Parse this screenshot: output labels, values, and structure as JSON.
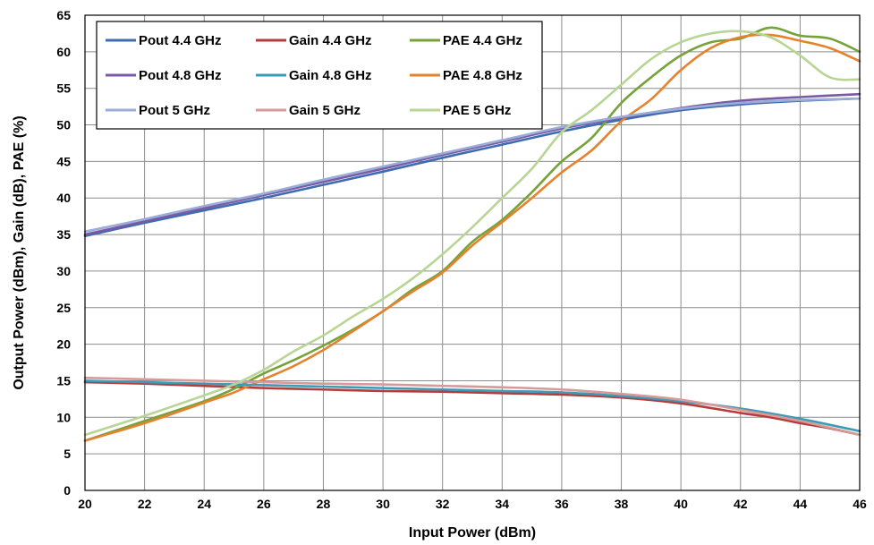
{
  "chart_data": {
    "type": "line",
    "xlabel": "Input Power (dBm)",
    "ylabel": "Output Power (dBm), Gain (dB), PAE (%)",
    "xlim": [
      20,
      46
    ],
    "ylim": [
      0,
      65
    ],
    "xticks": [
      20,
      22,
      24,
      26,
      28,
      30,
      32,
      34,
      36,
      38,
      40,
      42,
      44,
      46
    ],
    "yticks": [
      0,
      5,
      10,
      15,
      20,
      25,
      30,
      35,
      40,
      45,
      50,
      55,
      60,
      65
    ],
    "grid": true,
    "legend_position": "top-left",
    "series": [
      {
        "name": "Pout 4.4 GHz",
        "color": "#3E6BB2",
        "x": [
          20,
          22,
          24,
          26,
          28,
          30,
          32,
          34,
          36,
          38,
          40,
          42,
          44,
          46
        ],
        "y": [
          34.8,
          36.6,
          38.3,
          40.0,
          41.8,
          43.6,
          45.5,
          47.3,
          49.1,
          50.7,
          52.0,
          52.8,
          53.3,
          53.6
        ]
      },
      {
        "name": "Gain 4.4 GHz",
        "color": "#B43C3C",
        "x": [
          20,
          22,
          24,
          26,
          28,
          30,
          32,
          34,
          36,
          38,
          40,
          42,
          43,
          44,
          45,
          46
        ],
        "y": [
          14.8,
          14.6,
          14.3,
          14.0,
          13.8,
          13.6,
          13.5,
          13.3,
          13.1,
          12.7,
          11.9,
          10.6,
          10.0,
          9.2,
          8.5,
          7.6
        ]
      },
      {
        "name": "PAE 4.4 GHz",
        "color": "#76A23A",
        "x": [
          20,
          22,
          24,
          25,
          26,
          27,
          28,
          29,
          30,
          31,
          32,
          33,
          34,
          35,
          36,
          37,
          38,
          39,
          40,
          41,
          42,
          43,
          44,
          45,
          46
        ],
        "y": [
          6.8,
          9.5,
          12.2,
          13.9,
          16.0,
          17.8,
          19.8,
          22.0,
          24.5,
          27.5,
          30.0,
          34.0,
          37.0,
          40.8,
          45.0,
          48.2,
          53.0,
          56.5,
          59.5,
          61.3,
          61.8,
          63.3,
          62.2,
          61.8,
          60.0
        ]
      },
      {
        "name": "PAE 4.8 GHz",
        "color": "#E6822E",
        "x": [
          20,
          22,
          24,
          25,
          26,
          27,
          28,
          29,
          30,
          31,
          32,
          33,
          34,
          35,
          36,
          37,
          38,
          39,
          40,
          41,
          42,
          43,
          44,
          45,
          46
        ],
        "y": [
          6.8,
          9.2,
          12.0,
          13.4,
          15.2,
          17.0,
          19.2,
          21.8,
          24.5,
          27.2,
          29.8,
          33.5,
          36.7,
          40.0,
          43.5,
          46.5,
          50.5,
          53.5,
          57.5,
          60.5,
          62.0,
          62.3,
          61.5,
          60.5,
          58.7
        ]
      },
      {
        "name": "Pout 4.8 GHz",
        "color": "#7A5AA3",
        "x": [
          20,
          22,
          24,
          26,
          28,
          30,
          32,
          34,
          36,
          38,
          40,
          42,
          44,
          46
        ],
        "y": [
          35.0,
          36.8,
          38.6,
          40.4,
          42.2,
          44.0,
          45.9,
          47.7,
          49.5,
          51.0,
          52.3,
          53.3,
          53.8,
          54.2
        ]
      },
      {
        "name": "Gain 4.8 GHz",
        "color": "#3C9BB5",
        "x": [
          20,
          22,
          24,
          26,
          28,
          30,
          32,
          34,
          36,
          38,
          40,
          42,
          44,
          46
        ],
        "y": [
          15.0,
          14.8,
          14.6,
          14.4,
          14.2,
          14.0,
          13.8,
          13.6,
          13.4,
          12.9,
          12.2,
          11.2,
          9.8,
          8.1
        ]
      },
      {
        "name": "Pout 5 GHz",
        "color": "#9AACD8",
        "x": [
          20,
          22,
          24,
          26,
          28,
          30,
          32,
          34,
          36,
          38,
          40,
          42,
          44,
          46
        ],
        "y": [
          35.4,
          37.1,
          38.9,
          40.6,
          42.5,
          44.3,
          46.1,
          47.9,
          49.7,
          51.1,
          52.2,
          53.0,
          53.4,
          53.6
        ]
      },
      {
        "name": "Gain 5 GHz",
        "color": "#D89A98",
        "x": [
          20,
          22,
          24,
          26,
          28,
          30,
          32,
          34,
          36,
          38,
          40,
          42,
          44,
          46
        ],
        "y": [
          15.4,
          15.2,
          15.0,
          14.8,
          14.6,
          14.5,
          14.3,
          14.1,
          13.8,
          13.2,
          12.4,
          11.0,
          9.5,
          7.6
        ]
      },
      {
        "name": "PAE 5 GHz",
        "color": "#B8D595",
        "x": [
          20,
          22,
          24,
          25,
          26,
          27,
          28,
          29,
          30,
          31,
          32,
          33,
          34,
          35,
          36,
          37,
          38,
          39,
          40,
          41,
          42,
          43,
          44,
          45,
          46
        ],
        "y": [
          7.6,
          10.2,
          13.0,
          14.5,
          16.5,
          19.0,
          21.2,
          23.8,
          26.2,
          29.0,
          32.3,
          36.0,
          40.0,
          44.0,
          49.0,
          52.0,
          55.5,
          59.0,
          61.3,
          62.5,
          62.8,
          62.0,
          59.5,
          56.5,
          56.2
        ]
      }
    ],
    "legend_order": [
      [
        "Pout 4.4 GHz",
        "Gain 4.4 GHz",
        "PAE 4.4 GHz"
      ],
      [
        "Pout 4.8 GHz",
        "Gain 4.8 GHz",
        "PAE 4.8 GHz"
      ],
      [
        "Pout 5 GHz",
        "Gain 5 GHz",
        "PAE 5 GHz"
      ]
    ]
  }
}
